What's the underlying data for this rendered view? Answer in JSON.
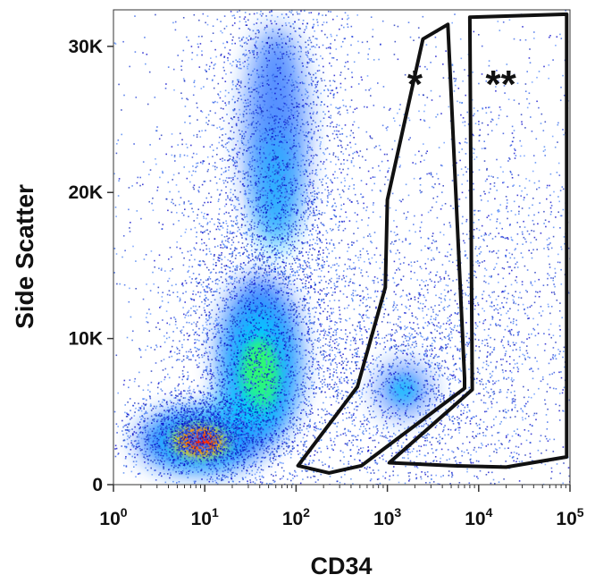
{
  "chart_data": {
    "type": "scatter",
    "title": "",
    "xlabel": "CD34",
    "ylabel": "Side Scatter",
    "x_scale": "log",
    "xlim": [
      1,
      100000
    ],
    "ylim": [
      0,
      32500
    ],
    "x_ticks": [
      {
        "value": 1,
        "base": "10",
        "exp": "0"
      },
      {
        "value": 10,
        "base": "10",
        "exp": "1"
      },
      {
        "value": 100,
        "base": "10",
        "exp": "2"
      },
      {
        "value": 1000,
        "base": "10",
        "exp": "3"
      },
      {
        "value": 10000,
        "base": "10",
        "exp": "4"
      },
      {
        "value": 100000,
        "base": "10",
        "exp": "5"
      }
    ],
    "y_ticks": [
      {
        "value": 0,
        "label": "0"
      },
      {
        "value": 10000,
        "label": "10K"
      },
      {
        "value": 20000,
        "label": "20K"
      },
      {
        "value": 30000,
        "label": "30K"
      }
    ],
    "grid": false,
    "legend": "none",
    "density_colormap": [
      "#0000cc",
      "#1a6aff",
      "#00d0ff",
      "#33ff66",
      "#ffff00",
      "#ff9900",
      "#ff0000"
    ],
    "populations": [
      {
        "x": 9,
        "y": 3000
      },
      {
        "x": 40,
        "y": 8000
      },
      {
        "x": 60,
        "y": 24000
      },
      {
        "x": 1500,
        "y": 6500
      },
      {
        "x": 20000,
        "y": 6000
      }
    ],
    "gates": [
      {
        "label": "*",
        "label_position": {
          "x": 2000,
          "y": 26500
        },
        "vertices": [
          {
            "x": 105,
            "y": 1300
          },
          {
            "x": 230,
            "y": 800
          },
          {
            "x": 520,
            "y": 1300
          },
          {
            "x": 7000,
            "y": 6600
          },
          {
            "x": 7000,
            "y": 7300
          },
          {
            "x": 4600,
            "y": 31500
          },
          {
            "x": 2450,
            "y": 30500
          },
          {
            "x": 1000,
            "y": 19500
          },
          {
            "x": 950,
            "y": 13500
          },
          {
            "x": 470,
            "y": 6700
          }
        ]
      },
      {
        "label": "**",
        "label_position": {
          "x": 17500,
          "y": 26500
        },
        "vertices": [
          {
            "x": 1050,
            "y": 1500
          },
          {
            "x": 8500,
            "y": 6500
          },
          {
            "x": 8000,
            "y": 32000
          },
          {
            "x": 92000,
            "y": 32200
          },
          {
            "x": 92000,
            "y": 1900
          },
          {
            "x": 20000,
            "y": 1200
          },
          {
            "x": 10000,
            "y": 1250
          },
          {
            "x": 5000,
            "y": 1300
          }
        ]
      }
    ]
  }
}
